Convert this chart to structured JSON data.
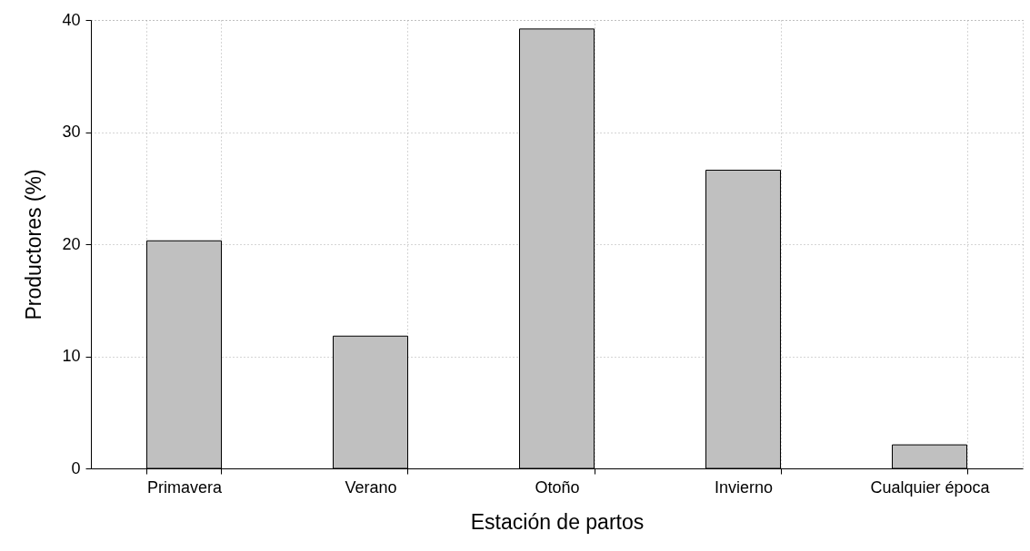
{
  "chart_data": {
    "type": "bar",
    "xlabel": "Estación de partos",
    "ylabel": "Productores (%)",
    "categories": [
      "Primavera",
      "Verano",
      "Otoño",
      "Invierno",
      "Cualquier época"
    ],
    "values": [
      20.3,
      11.8,
      39.2,
      26.6,
      2.1
    ],
    "color": "#c0c0c0",
    "ylim": [
      0,
      40
    ],
    "yticks": [
      0,
      10,
      20,
      30,
      40
    ],
    "grid": true,
    "line_style": "dotted"
  }
}
